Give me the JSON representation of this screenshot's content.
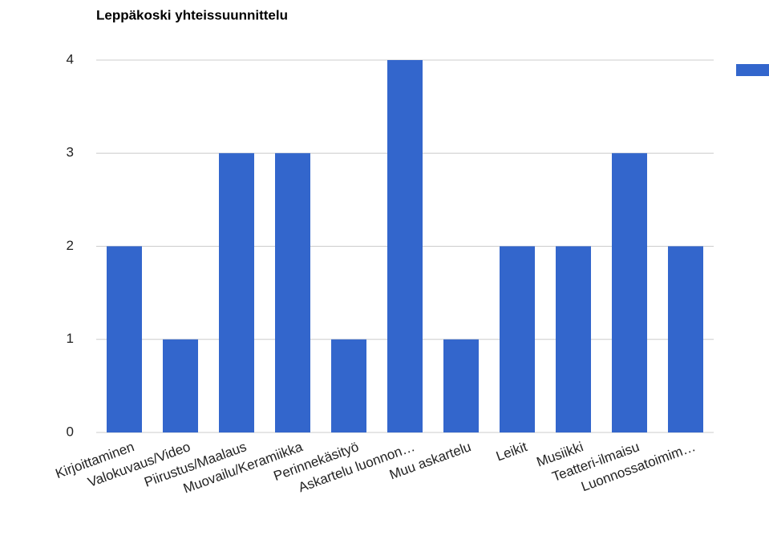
{
  "chart_data": {
    "type": "bar",
    "title": "Leppäkoski yhteissuunnittelu",
    "categories": [
      "Kirjoittaminen",
      "Valokuvaus/Video",
      "Piirustus/Maalaus",
      "Muovailu/Keramiikka",
      "Perinnekäsityö",
      "Askartelu luonnon…",
      "Muu askartelu",
      "Leikit",
      "Musiikki",
      "Teatteri-ilmaisu",
      "Luonnossatoimim…"
    ],
    "values": [
      2,
      1,
      3,
      3,
      1,
      4,
      1,
      2,
      2,
      3,
      2
    ],
    "color": "#3366cc",
    "ylim": [
      0,
      4
    ],
    "yticks": [
      0,
      1,
      2,
      3,
      4
    ],
    "grid": true,
    "legend": "right"
  }
}
